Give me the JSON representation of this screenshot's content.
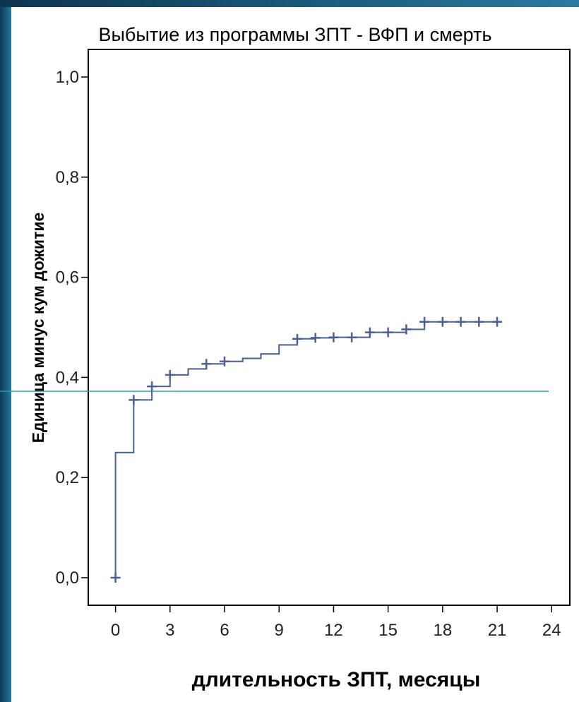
{
  "chart_data": {
    "type": "line",
    "title": "Выбытие из программы ЗПТ - ВФП и смерть",
    "xlabel": "длительность ЗПТ, месяцы",
    "ylabel": "Единица минус кум дожитие",
    "xlim": [
      -1.5,
      25
    ],
    "ylim": [
      -0.055,
      1.055
    ],
    "x_ticks": [
      0,
      3,
      6,
      9,
      12,
      15,
      18,
      21,
      24
    ],
    "y_ticks": [
      0.0,
      0.2,
      0.4,
      0.6,
      0.8,
      1.0
    ],
    "x_tick_labels": [
      "0",
      "3",
      "6",
      "9",
      "12",
      "15",
      "18",
      "21",
      "24"
    ],
    "y_tick_labels": [
      "0,0",
      "0,2",
      "0,4",
      "0,6",
      "0,8",
      "1,0"
    ],
    "grid": false,
    "legend": "none",
    "step_curve": {
      "x": [
        0,
        1,
        2,
        3,
        4,
        5,
        6,
        7,
        8,
        9,
        10,
        11,
        12,
        13,
        14,
        15,
        16,
        17,
        18,
        19,
        20,
        21
      ],
      "y": [
        0.25,
        0.355,
        0.382,
        0.405,
        0.417,
        0.427,
        0.432,
        0.438,
        0.447,
        0.465,
        0.477,
        0.479,
        0.48,
        0.48,
        0.49,
        0.49,
        0.496,
        0.511,
        0.511,
        0.511,
        0.511,
        0.511
      ]
    },
    "censored_points": {
      "x": [
        0,
        1,
        2,
        3,
        5,
        6,
        10,
        11,
        12,
        13,
        14,
        15,
        16,
        17,
        18,
        19,
        20,
        21
      ],
      "y": [
        0.0,
        0.355,
        0.382,
        0.405,
        0.427,
        0.432,
        0.477,
        0.479,
        0.48,
        0.48,
        0.49,
        0.49,
        0.496,
        0.511,
        0.511,
        0.511,
        0.511,
        0.511
      ]
    },
    "colors": {
      "curve": "#4a5f92",
      "axis": "#000000",
      "reference_line": "#2b9ab5"
    }
  }
}
